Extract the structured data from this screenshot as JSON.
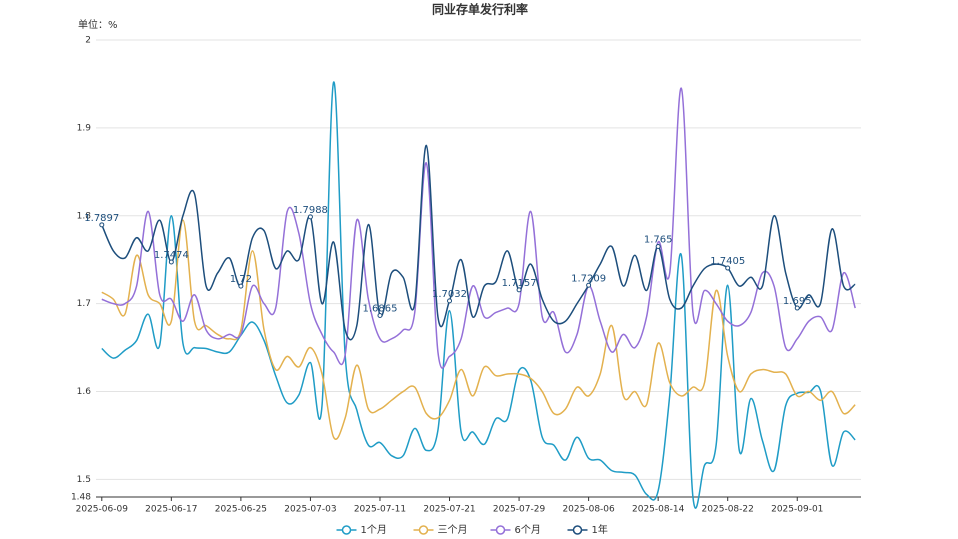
{
  "chart_data": {
    "type": "line",
    "title": "同业存单发行利率",
    "y_label": "单位：%",
    "categories": [
      "2025-06-09",
      null,
      null,
      null,
      null,
      null,
      "2025-06-17",
      null,
      null,
      null,
      null,
      null,
      "2025-06-25",
      null,
      null,
      null,
      null,
      null,
      "2025-07-03",
      null,
      null,
      null,
      null,
      null,
      "2025-07-11",
      null,
      null,
      null,
      null,
      null,
      "2025-07-21",
      null,
      null,
      null,
      null,
      null,
      "2025-07-29",
      null,
      null,
      null,
      null,
      null,
      "2025-08-06",
      null,
      null,
      null,
      null,
      null,
      "2025-08-14",
      null,
      null,
      null,
      null,
      null,
      "2025-08-22",
      null,
      null,
      null,
      null,
      null,
      "2025-09-01",
      null,
      null,
      null,
      null,
      null
    ],
    "series": [
      {
        "name": "1个月",
        "color": "#1f9cc6",
        "values": [
          1.649,
          1.638,
          1.647,
          1.658,
          1.688,
          1.653,
          1.8,
          1.655,
          1.65,
          1.649,
          1.645,
          1.645,
          1.664,
          1.679,
          1.658,
          1.618,
          1.587,
          1.596,
          1.633,
          1.584,
          1.952,
          1.641,
          1.579,
          1.539,
          1.542,
          1.527,
          1.527,
          1.558,
          1.533,
          1.556,
          1.692,
          1.554,
          1.554,
          1.54,
          1.569,
          1.569,
          1.624,
          1.613,
          1.548,
          1.539,
          1.522,
          1.548,
          1.524,
          1.522,
          1.51,
          1.508,
          1.505,
          1.483,
          1.487,
          1.596,
          1.755,
          1.48,
          1.516,
          1.539,
          1.721,
          1.533,
          1.592,
          1.544,
          1.51,
          1.584,
          1.598,
          1.599,
          1.601,
          1.516,
          1.554,
          1.545
        ]
      },
      {
        "name": "三个月",
        "color": "#e3b14e",
        "values": [
          1.713,
          1.705,
          1.688,
          1.755,
          1.71,
          1.7,
          1.68,
          1.795,
          1.68,
          1.675,
          1.665,
          1.66,
          1.67,
          1.76,
          1.67,
          1.625,
          1.64,
          1.628,
          1.65,
          1.62,
          1.548,
          1.57,
          1.63,
          1.58,
          1.58,
          1.59,
          1.6,
          1.605,
          1.575,
          1.57,
          1.59,
          1.625,
          1.595,
          1.628,
          1.618,
          1.62,
          1.62,
          1.615,
          1.6,
          1.575,
          1.58,
          1.605,
          1.595,
          1.62,
          1.675,
          1.595,
          1.6,
          1.585,
          1.655,
          1.61,
          1.595,
          1.605,
          1.61,
          1.715,
          1.64,
          1.6,
          1.62,
          1.625,
          1.622,
          1.62,
          1.595,
          1.6,
          1.59,
          1.6,
          1.575,
          1.585
        ]
      },
      {
        "name": "6个月",
        "color": "#9470d8",
        "values": [
          1.705,
          1.7,
          1.7,
          1.72,
          1.805,
          1.71,
          1.705,
          1.68,
          1.71,
          1.67,
          1.66,
          1.665,
          1.665,
          1.72,
          1.7,
          1.695,
          1.805,
          1.78,
          1.7,
          1.665,
          1.645,
          1.642,
          1.795,
          1.705,
          1.66,
          1.66,
          1.67,
          1.69,
          1.86,
          1.645,
          1.64,
          1.66,
          1.72,
          1.685,
          1.69,
          1.695,
          1.7,
          1.805,
          1.685,
          1.69,
          1.645,
          1.665,
          1.72,
          1.68,
          1.645,
          1.665,
          1.65,
          1.685,
          1.77,
          1.735,
          1.945,
          1.69,
          1.715,
          1.7,
          1.68,
          1.675,
          1.69,
          1.735,
          1.72,
          1.65,
          1.66,
          1.68,
          1.685,
          1.67,
          1.735,
          1.695
        ]
      },
      {
        "name": "1年",
        "color": "#1d4e7c",
        "values": [
          1.7897,
          1.76,
          1.752,
          1.775,
          1.76,
          1.795,
          1.7474,
          1.8,
          1.825,
          1.72,
          1.735,
          1.752,
          1.72,
          1.775,
          1.783,
          1.74,
          1.76,
          1.75,
          1.7988,
          1.7,
          1.77,
          1.67,
          1.675,
          1.79,
          1.6865,
          1.735,
          1.73,
          1.7,
          1.88,
          1.685,
          1.7032,
          1.75,
          1.685,
          1.72,
          1.725,
          1.76,
          1.7157,
          1.745,
          1.705,
          1.68,
          1.68,
          1.7,
          1.7209,
          1.745,
          1.765,
          1.72,
          1.755,
          1.715,
          1.765,
          1.705,
          1.695,
          1.72,
          1.74,
          1.745,
          1.7405,
          1.72,
          1.73,
          1.72,
          1.8,
          1.735,
          1.695,
          1.71,
          1.7,
          1.785,
          1.72,
          1.722
        ]
      }
    ],
    "ylim": [
      1.48,
      2
    ],
    "yticks": [
      1.48,
      1.5,
      1.6,
      1.7,
      1.8,
      1.9,
      2
    ],
    "grid": true,
    "legend": "bottom"
  }
}
